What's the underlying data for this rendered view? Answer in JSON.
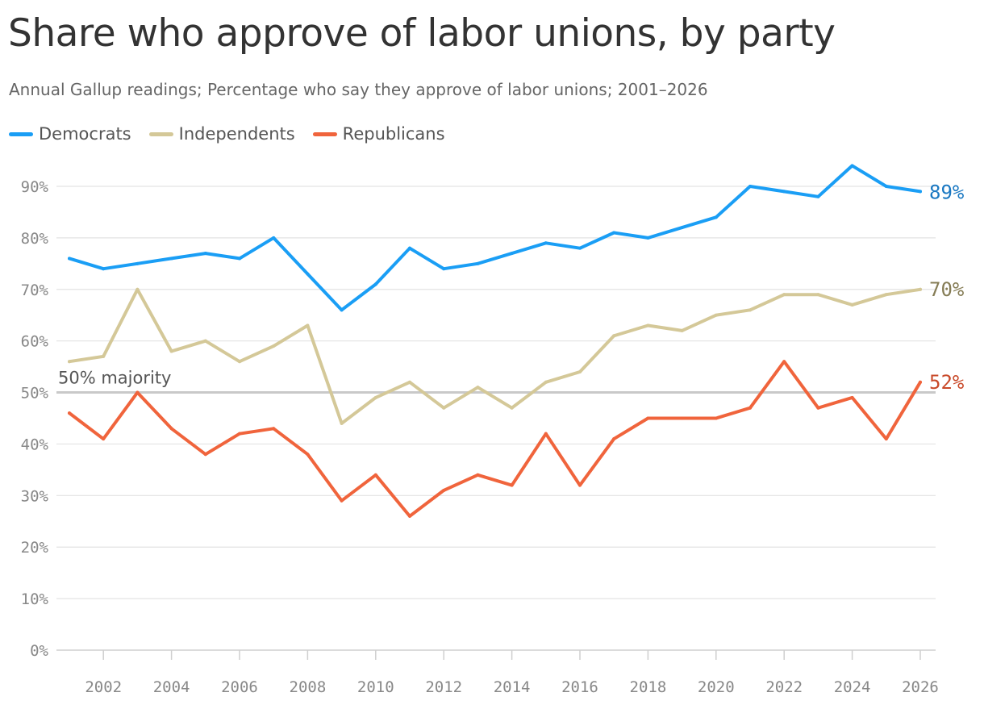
{
  "title": "Share who approve of labor unions, by party",
  "subtitle": "Annual Gallup readings; Percentage who say they approve of labor unions; 2001–2026",
  "chart_data": {
    "type": "line",
    "title": "Share who approve of labor unions, by party",
    "subtitle": "Annual Gallup readings; Percentage who say they approve of labor unions; 2001–2026",
    "xlabel": "",
    "ylabel": "",
    "x": [
      2001,
      2002,
      2003,
      2004,
      2005,
      2006,
      2007,
      2008,
      2009,
      2010,
      2011,
      2012,
      2013,
      2014,
      2015,
      2016,
      2017,
      2018,
      2019,
      2020,
      2021,
      2022,
      2023,
      2024,
      2025,
      2026
    ],
    "xlim": [
      2001,
      2026
    ],
    "ylim": [
      0,
      90
    ],
    "x_ticks": [
      "2002",
      "2004",
      "2006",
      "2008",
      "2010",
      "2012",
      "2014",
      "2016",
      "2018",
      "2020",
      "2022",
      "2024",
      "2026"
    ],
    "y_ticks": [
      "0%",
      "10%",
      "20%",
      "30%",
      "40%",
      "50%",
      "60%",
      "70%",
      "80%",
      "90%"
    ],
    "grid": true,
    "legend_position": "top-left",
    "series": [
      {
        "name": "Democrats",
        "color": "#1a9ef5",
        "label_color": "#1a78c2",
        "end_label": "89%",
        "values": [
          76,
          74,
          75,
          76,
          77,
          76,
          80,
          73,
          66,
          71,
          78,
          74,
          75,
          77,
          79,
          78,
          81,
          80,
          82,
          84,
          90,
          89,
          88,
          94,
          90,
          89
        ]
      },
      {
        "name": "Independents",
        "color": "#d4c898",
        "label_color": "#857c55",
        "end_label": "70%",
        "values": [
          56,
          57,
          70,
          58,
          60,
          56,
          59,
          63,
          44,
          49,
          52,
          47,
          51,
          47,
          52,
          54,
          61,
          63,
          62,
          65,
          66,
          69,
          69,
          67,
          69,
          70
        ]
      },
      {
        "name": "Republicans",
        "color": "#f0643c",
        "label_color": "#c94a2a",
        "end_label": "52%",
        "values": [
          46,
          41,
          50,
          43,
          38,
          42,
          43,
          38,
          29,
          34,
          26,
          31,
          34,
          32,
          42,
          32,
          41,
          45,
          45,
          45,
          47,
          56,
          47,
          49,
          41,
          52
        ]
      }
    ],
    "annotations": [
      {
        "text": "50% majority",
        "y": 50
      }
    ]
  }
}
